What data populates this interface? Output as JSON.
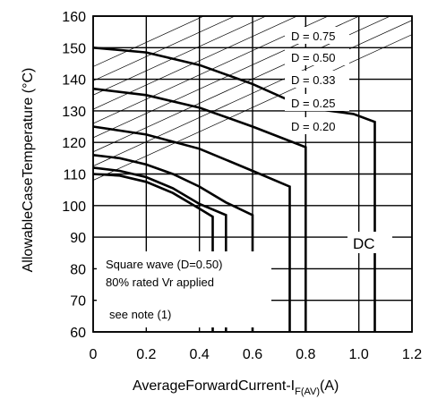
{
  "chart_data": {
    "type": "line",
    "title": "",
    "xlabel": "AverageForwardCurrent-I",
    "xlabel_sub": "F(AV)",
    "xlabel_unit": "(A)",
    "ylabel": "AllowableCaseTemperature (°C)",
    "xlim": [
      0,
      1.2
    ],
    "ylim": [
      60,
      160
    ],
    "xticks": [
      0,
      0.2,
      0.4,
      0.6,
      0.8,
      1.0,
      1.2
    ],
    "xtick_labels": [
      "0",
      "0.2",
      "0.4",
      "0.6",
      "0.8",
      "1.0",
      "1.2"
    ],
    "yticks": [
      60,
      70,
      80,
      90,
      100,
      110,
      120,
      130,
      140,
      150,
      160
    ],
    "ytick_labels": [
      "60",
      "70",
      "80",
      "90",
      "100",
      "110",
      "120",
      "130",
      "140",
      "150",
      "160"
    ],
    "grid": true,
    "series": [
      {
        "name": "D = 0.20",
        "x": [
          0,
          0.1,
          0.2,
          0.3,
          0.4,
          0.45,
          0.45
        ],
        "y": [
          110,
          109.5,
          107.5,
          104,
          99,
          96.5,
          60
        ]
      },
      {
        "name": "D = 0.25",
        "x": [
          0,
          0.1,
          0.2,
          0.3,
          0.4,
          0.5,
          0.5
        ],
        "y": [
          112,
          111,
          109,
          105.5,
          100.5,
          97,
          60
        ]
      },
      {
        "name": "D = 0.33",
        "x": [
          0,
          0.1,
          0.2,
          0.3,
          0.4,
          0.5,
          0.6,
          0.6
        ],
        "y": [
          116,
          115,
          113,
          110,
          106,
          101,
          97,
          60
        ]
      },
      {
        "name": "D = 0.50",
        "x": [
          0,
          0.2,
          0.4,
          0.6,
          0.74,
          0.74
        ],
        "y": [
          125,
          122.5,
          118,
          111,
          106,
          60
        ]
      },
      {
        "name": "D = 0.75",
        "x": [
          0,
          0.2,
          0.4,
          0.6,
          0.8,
          0.8
        ],
        "y": [
          137,
          135,
          131,
          125,
          118.5,
          60
        ]
      },
      {
        "name": "DC",
        "x": [
          0,
          0.2,
          0.4,
          0.6,
          0.8,
          0.98,
          1.06,
          1.06
        ],
        "y": [
          150,
          148.5,
          144.5,
          138.5,
          131,
          129,
          126.5,
          60
        ]
      }
    ],
    "duty_labels": [
      "D = 0.75",
      "D = 0.50",
      "D = 0.33",
      "D = 0.25",
      "D = 0.20"
    ],
    "dc_label": "DC",
    "annotations": [
      "Square wave (D=0.50)",
      "80% rated Vr applied",
      "see note (1)"
    ]
  }
}
